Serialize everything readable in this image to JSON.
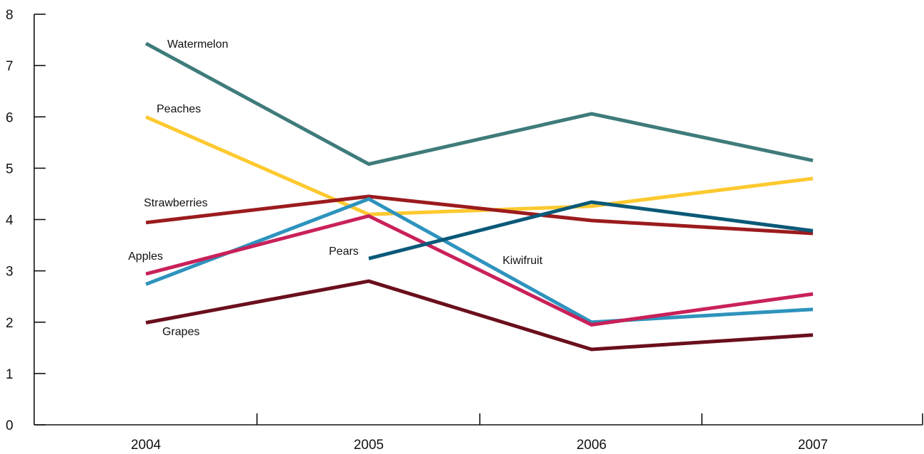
{
  "chart_data": {
    "type": "line",
    "title": "",
    "xlabel": "",
    "ylabel": "",
    "categories": [
      "2004",
      "2005",
      "2006",
      "2007"
    ],
    "y_ticks": [
      "0",
      "1",
      "2",
      "3",
      "4",
      "5",
      "6",
      "7",
      "8"
    ],
    "ylim": [
      0,
      8
    ],
    "grid": false,
    "legend": "none (direct labels)",
    "series": [
      {
        "name": "Watermelon",
        "color": "#3f7b7b",
        "values": [
          7.43,
          5.08,
          6.06,
          5.15
        ]
      },
      {
        "name": "Peaches",
        "color": "#fdc92f",
        "values": [
          6.0,
          4.1,
          4.26,
          4.8
        ]
      },
      {
        "name": "Strawberries",
        "color": "#9b1b1e",
        "values": [
          3.94,
          4.45,
          3.98,
          3.73
        ]
      },
      {
        "name": "Kiwifruit",
        "color": "#2e93bd",
        "values": [
          2.74,
          4.4,
          2.0,
          2.25
        ]
      },
      {
        "name": "Apples",
        "color": "#c9215a",
        "values": [
          2.94,
          4.07,
          1.95,
          2.55
        ]
      },
      {
        "name": "Pears",
        "color": "#0a5978",
        "values": [
          null,
          3.24,
          4.34,
          3.78
        ]
      },
      {
        "name": "Grapes",
        "color": "#6a0f1c",
        "values": [
          1.99,
          2.8,
          1.47,
          1.75
        ]
      }
    ]
  }
}
